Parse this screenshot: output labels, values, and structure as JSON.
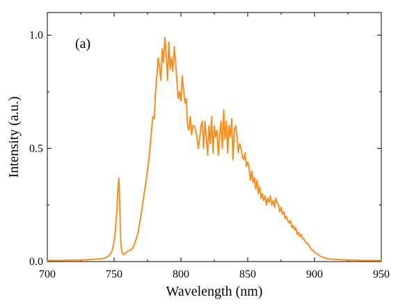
{
  "chart_data": {
    "type": "line",
    "panel_label": "(a)",
    "xlabel": "Wavelength (nm)",
    "ylabel": "Intensity (a.u.)",
    "xlim": [
      700,
      950
    ],
    "ylim": [
      0,
      1.1
    ],
    "x_ticks": [
      700,
      750,
      800,
      850,
      900,
      950
    ],
    "x_tick_labels": [
      "700",
      "750",
      "800",
      "850",
      "900",
      "950"
    ],
    "y_ticks": [
      0,
      0.5,
      1.0
    ],
    "y_tick_labels": [
      "0.0",
      "0.5",
      "1.0"
    ],
    "grid": false,
    "legend": "none",
    "line_color": "#F5901E",
    "series": [
      {
        "x": [
          700,
          705,
          710,
          715,
          720,
          725,
          730,
          735,
          740,
          742,
          744,
          746,
          748,
          749,
          750,
          751,
          752,
          753,
          753.5,
          754,
          754.5,
          755,
          756,
          757,
          758,
          759,
          760,
          762,
          764,
          766,
          768,
          770,
          772,
          774,
          776,
          778,
          779,
          780,
          781,
          782,
          783,
          784,
          785,
          786,
          787,
          788,
          789,
          790,
          791,
          792,
          793,
          794,
          795,
          796,
          797,
          798,
          799,
          800,
          801,
          802,
          803,
          804,
          805,
          806,
          807,
          808,
          809,
          810,
          811,
          812,
          813,
          814,
          815,
          816,
          817,
          818,
          819,
          820,
          821,
          822,
          823,
          824,
          825,
          826,
          827,
          828,
          829,
          830,
          831,
          832,
          833,
          834,
          835,
          836,
          837,
          838,
          839,
          840,
          841,
          842,
          843,
          844,
          845,
          846,
          847,
          848,
          849,
          850,
          851,
          852,
          853,
          854,
          855,
          856,
          857,
          858,
          859,
          860,
          861,
          862,
          863,
          864,
          865,
          866,
          867,
          868,
          869,
          870,
          871,
          872,
          873,
          874,
          875,
          876,
          877,
          878,
          879,
          880,
          881,
          882,
          883,
          884,
          885,
          886,
          887,
          888,
          889,
          890,
          891,
          892,
          893,
          894,
          895,
          896,
          897,
          898,
          899,
          900,
          902,
          904,
          906,
          908,
          910,
          915,
          920,
          925,
          930,
          935,
          940,
          945,
          950
        ],
        "y": [
          0.005,
          0.005,
          0.005,
          0.006,
          0.006,
          0.007,
          0.008,
          0.01,
          0.012,
          0.014,
          0.018,
          0.025,
          0.04,
          0.06,
          0.09,
          0.14,
          0.22,
          0.33,
          0.37,
          0.3,
          0.18,
          0.08,
          0.04,
          0.03,
          0.035,
          0.04,
          0.045,
          0.05,
          0.06,
          0.09,
          0.13,
          0.2,
          0.28,
          0.36,
          0.45,
          0.58,
          0.64,
          0.63,
          0.75,
          0.82,
          0.9,
          0.86,
          0.8,
          0.94,
          0.88,
          0.99,
          0.92,
          0.8,
          0.97,
          0.85,
          0.9,
          0.84,
          0.95,
          0.88,
          0.8,
          0.72,
          0.75,
          0.71,
          0.82,
          0.76,
          0.7,
          0.72,
          0.6,
          0.58,
          0.64,
          0.56,
          0.6,
          0.6,
          0.58,
          0.55,
          0.5,
          0.54,
          0.6,
          0.62,
          0.5,
          0.62,
          0.55,
          0.47,
          0.6,
          0.52,
          0.64,
          0.48,
          0.6,
          0.55,
          0.58,
          0.47,
          0.56,
          0.62,
          0.5,
          0.67,
          0.54,
          0.62,
          0.48,
          0.6,
          0.55,
          0.63,
          0.45,
          0.58,
          0.6,
          0.55,
          0.48,
          0.52,
          0.5,
          0.46,
          0.45,
          0.48,
          0.42,
          0.44,
          0.42,
          0.36,
          0.4,
          0.35,
          0.37,
          0.32,
          0.36,
          0.3,
          0.33,
          0.28,
          0.3,
          0.27,
          0.29,
          0.25,
          0.28,
          0.26,
          0.29,
          0.25,
          0.27,
          0.24,
          0.28,
          0.26,
          0.25,
          0.22,
          0.24,
          0.21,
          0.22,
          0.19,
          0.2,
          0.18,
          0.17,
          0.18,
          0.15,
          0.16,
          0.14,
          0.15,
          0.12,
          0.13,
          0.11,
          0.12,
          0.1,
          0.1,
          0.09,
          0.08,
          0.08,
          0.07,
          0.06,
          0.05,
          0.05,
          0.04,
          0.035,
          0.025,
          0.02,
          0.015,
          0.012,
          0.01,
          0.008,
          0.007,
          0.006,
          0.005,
          0.005,
          0.005,
          0.005
        ]
      }
    ]
  }
}
